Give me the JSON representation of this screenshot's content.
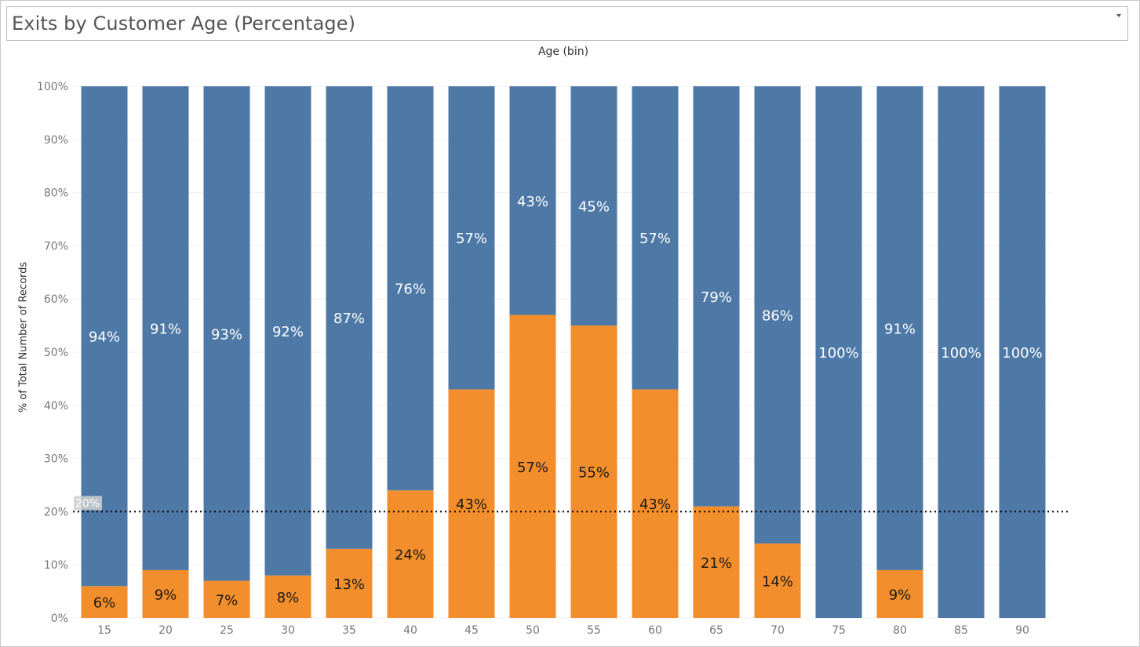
{
  "title": "Exits by Customer Age (Percentage)",
  "chart_data": {
    "type": "bar",
    "stacked": true,
    "column_header": "Age (bin)",
    "categories": [
      "15",
      "20",
      "25",
      "30",
      "35",
      "40",
      "45",
      "50",
      "55",
      "60",
      "65",
      "70",
      "75",
      "80",
      "85",
      "90"
    ],
    "series": [
      {
        "values": [
          94,
          91,
          93,
          92,
          87,
          76,
          57,
          43,
          45,
          57,
          79,
          86,
          100,
          91,
          100,
          100
        ],
        "color": "#4e79a7"
      },
      {
        "values": [
          6,
          9,
          7,
          8,
          13,
          24,
          43,
          57,
          55,
          43,
          21,
          14,
          0,
          9,
          0,
          0
        ],
        "color": "#f28e2b"
      }
    ],
    "bar_labels": {
      "top": [
        "94%",
        "91%",
        "93%",
        "92%",
        "87%",
        "76%",
        "57%",
        "43%",
        "45%",
        "57%",
        "79%",
        "86%",
        "100%",
        "91%",
        "100%",
        "100%"
      ],
      "bottom": [
        "6%",
        "9%",
        "7%",
        "8%",
        "13%",
        "24%",
        "43%",
        "57%",
        "55%",
        "43%",
        "21%",
        "14%",
        "",
        "9%",
        "",
        ""
      ]
    },
    "ylabel": "% of Total Number of Records",
    "ylim": [
      0,
      100
    ],
    "yticks": [
      "0%",
      "10%",
      "20%",
      "30%",
      "40%",
      "50%",
      "60%",
      "70%",
      "80%",
      "90%",
      "100%"
    ],
    "reference_line": {
      "value": 20,
      "label": "20%",
      "style": "dotted"
    },
    "grid": true
  }
}
